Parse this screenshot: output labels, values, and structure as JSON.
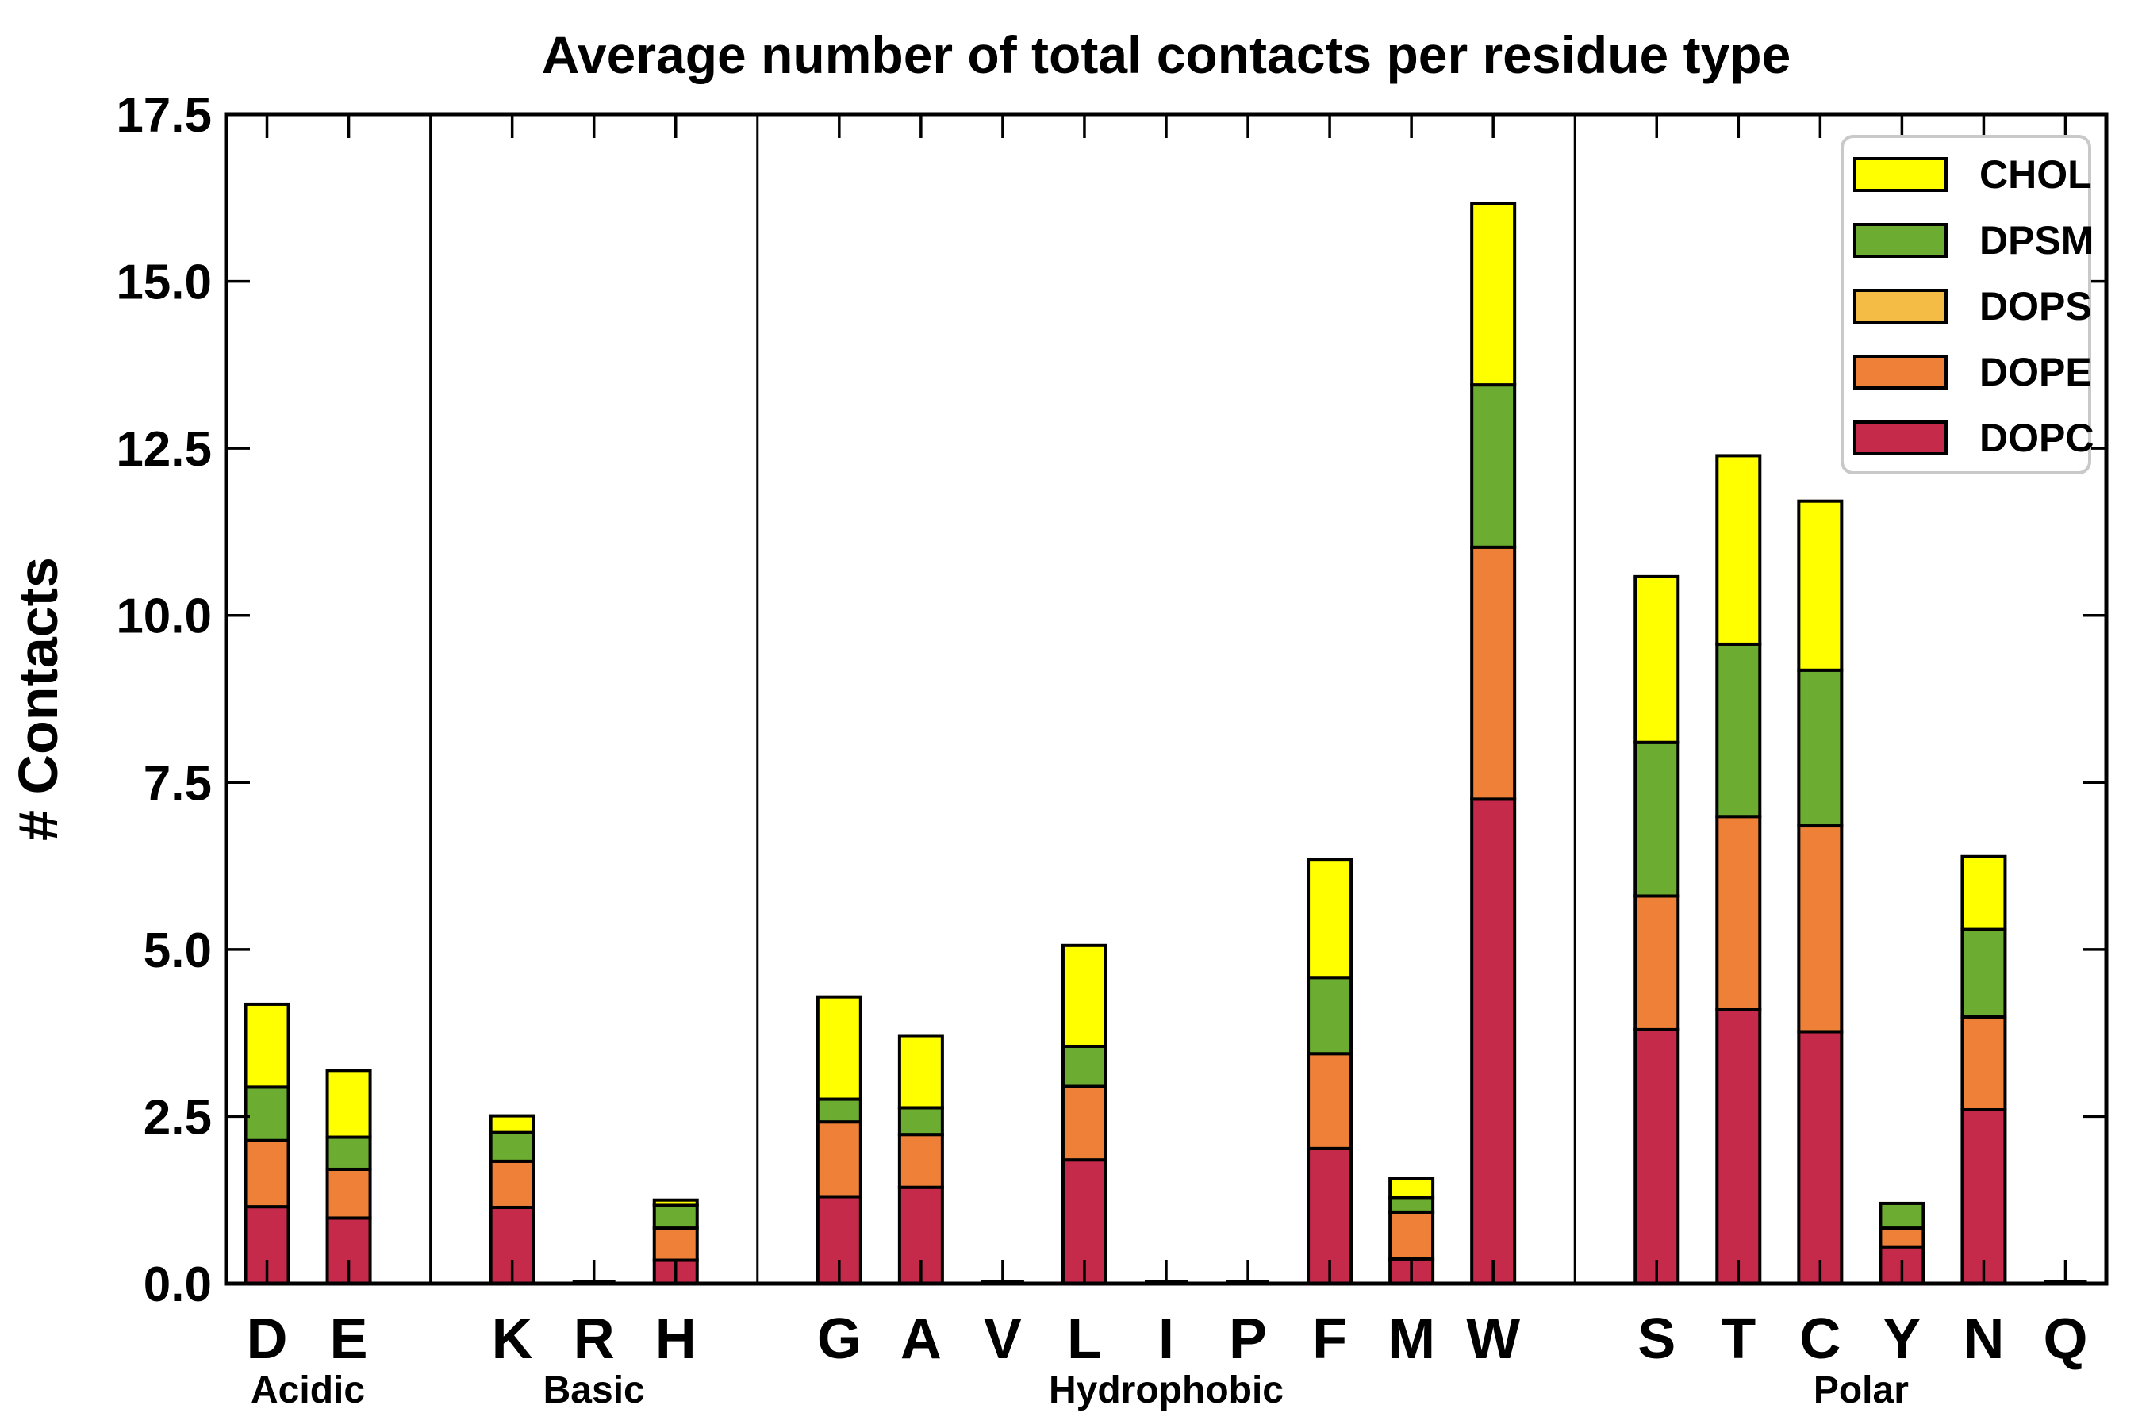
{
  "title": "Average number of total contacts per residue type",
  "ylabel": "# Contacts",
  "axis": {
    "yticks": [
      "0.0",
      "2.5",
      "5.0",
      "7.5",
      "10.0",
      "12.5",
      "15.0",
      "17.5"
    ],
    "ylim": [
      0,
      17.5
    ]
  },
  "legend": {
    "entries": [
      {
        "label": "CHOL",
        "lipid": "CHOL"
      },
      {
        "label": "DPSM",
        "lipid": "DPSM"
      },
      {
        "label": "DOPS",
        "lipid": "DOPS"
      },
      {
        "label": "DOPE",
        "lipid": "DOPE"
      },
      {
        "label": "DOPC",
        "lipid": "DOPC"
      }
    ]
  },
  "chart_data": {
    "type": "bar",
    "stacked": true,
    "stack_order": [
      "DOPC",
      "DOPE",
      "DOPS",
      "DPSM",
      "CHOL"
    ],
    "colors": {
      "CHOL": "#FFFF00",
      "DPSM": "#6BAC31",
      "DOPS": "#F5BC45",
      "DOPE": "#EE8038",
      "DOPC": "#C52A4B"
    },
    "edge_color": "#000000",
    "ylim": [
      0,
      17.5
    ],
    "grid": false,
    "legend_position": "upper right",
    "groups": [
      {
        "label": "Acidic",
        "residues": [
          {
            "label": "D",
            "values": {
              "DOPC": 1.15,
              "DOPE": 0.99,
              "DOPS": 0,
              "DPSM": 0.8,
              "CHOL": 1.24
            },
            "total": 4.18
          },
          {
            "label": "E",
            "values": {
              "DOPC": 0.98,
              "DOPE": 0.73,
              "DOPS": 0,
              "DPSM": 0.48,
              "CHOL": 1.0
            },
            "total": 3.19
          }
        ]
      },
      {
        "label": "Basic",
        "residues": [
          {
            "label": "K",
            "values": {
              "DOPC": 1.14,
              "DOPE": 0.69,
              "DOPS": 0,
              "DPSM": 0.43,
              "CHOL": 0.25
            },
            "total": 2.51
          },
          {
            "label": "R",
            "values": {
              "DOPC": 0,
              "DOPE": 0,
              "DOPS": 0,
              "DPSM": 0,
              "CHOL": 0
            },
            "total": 0
          },
          {
            "label": "H",
            "values": {
              "DOPC": 0.35,
              "DOPE": 0.48,
              "DOPS": 0,
              "DPSM": 0.34,
              "CHOL": 0.08
            },
            "total": 1.25
          }
        ]
      },
      {
        "label": "Hydrophobic",
        "residues": [
          {
            "label": "G",
            "values": {
              "DOPC": 1.3,
              "DOPE": 1.12,
              "DOPS": 0,
              "DPSM": 0.34,
              "CHOL": 1.53
            },
            "total": 4.29
          },
          {
            "label": "A",
            "values": {
              "DOPC": 1.44,
              "DOPE": 0.79,
              "DOPS": 0,
              "DPSM": 0.4,
              "CHOL": 1.08
            },
            "total": 3.71
          },
          {
            "label": "V",
            "values": {
              "DOPC": 0,
              "DOPE": 0,
              "DOPS": 0,
              "DPSM": 0,
              "CHOL": 0
            },
            "total": 0
          },
          {
            "label": "L",
            "values": {
              "DOPC": 1.85,
              "DOPE": 1.1,
              "DOPS": 0,
              "DPSM": 0.6,
              "CHOL": 1.51
            },
            "total": 5.06
          },
          {
            "label": "I",
            "values": {
              "DOPC": 0,
              "DOPE": 0,
              "DOPS": 0,
              "DPSM": 0,
              "CHOL": 0
            },
            "total": 0
          },
          {
            "label": "P",
            "values": {
              "DOPC": 0,
              "DOPE": 0,
              "DOPS": 0,
              "DPSM": 0,
              "CHOL": 0
            },
            "total": 0
          },
          {
            "label": "F",
            "values": {
              "DOPC": 2.02,
              "DOPE": 1.42,
              "DOPS": 0,
              "DPSM": 1.14,
              "CHOL": 1.77
            },
            "total": 6.35
          },
          {
            "label": "M",
            "values": {
              "DOPC": 0.37,
              "DOPE": 0.7,
              "DOPS": 0,
              "DPSM": 0.22,
              "CHOL": 0.28
            },
            "total": 1.57
          },
          {
            "label": "W",
            "values": {
              "DOPC": 7.25,
              "DOPE": 3.77,
              "DOPS": 0,
              "DPSM": 2.43,
              "CHOL": 2.72
            },
            "total": 16.17
          }
        ]
      },
      {
        "label": "Polar",
        "residues": [
          {
            "label": "S",
            "values": {
              "DOPC": 3.8,
              "DOPE": 2.0,
              "DOPS": 0,
              "DPSM": 2.3,
              "CHOL": 2.48
            },
            "total": 10.58
          },
          {
            "label": "T",
            "values": {
              "DOPC": 4.1,
              "DOPE": 2.89,
              "DOPS": 0,
              "DPSM": 2.58,
              "CHOL": 2.82
            },
            "total": 12.39
          },
          {
            "label": "C",
            "values": {
              "DOPC": 3.77,
              "DOPE": 3.08,
              "DOPS": 0,
              "DPSM": 2.33,
              "CHOL": 2.53
            },
            "total": 11.71
          },
          {
            "label": "Y",
            "values": {
              "DOPC": 0.55,
              "DOPE": 0.28,
              "DOPS": 0,
              "DPSM": 0.37,
              "CHOL": 0
            },
            "total": 1.2
          },
          {
            "label": "N",
            "values": {
              "DOPC": 2.6,
              "DOPE": 1.39,
              "DOPS": 0,
              "DPSM": 1.31,
              "CHOL": 1.09
            },
            "total": 6.39
          },
          {
            "label": "Q",
            "values": {
              "DOPC": 0,
              "DOPE": 0,
              "DOPS": 0,
              "DPSM": 0,
              "CHOL": 0
            },
            "total": 0
          }
        ]
      }
    ]
  }
}
